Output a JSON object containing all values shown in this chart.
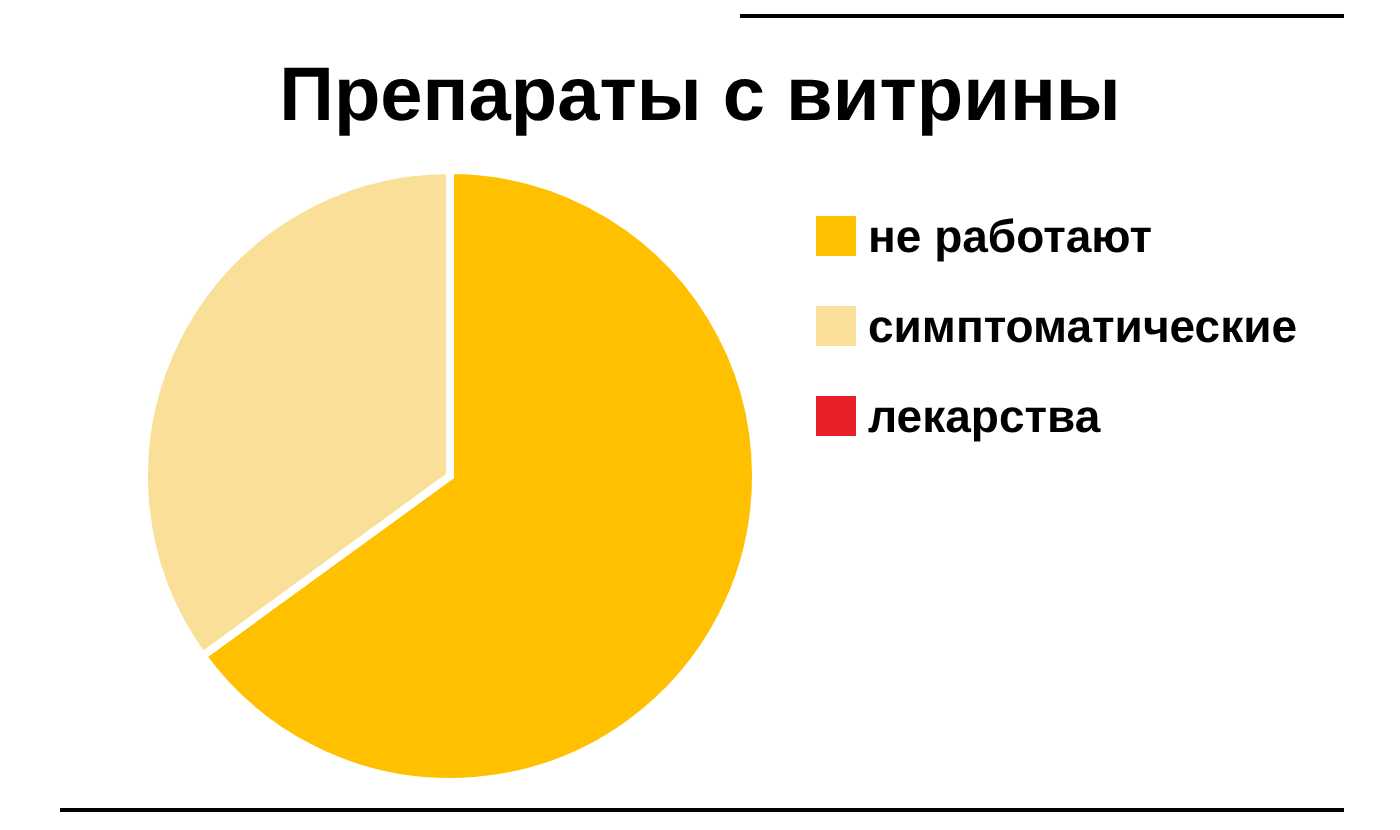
{
  "chart_data": {
    "type": "pie",
    "title": "Препараты с витрины",
    "categories": [
      "не работают",
      "симптоматические",
      "лекарства"
    ],
    "values": [
      65,
      35,
      0
    ],
    "colors": [
      "#ffc000",
      "#f9df97",
      "#e8202a"
    ],
    "legend": "right"
  }
}
